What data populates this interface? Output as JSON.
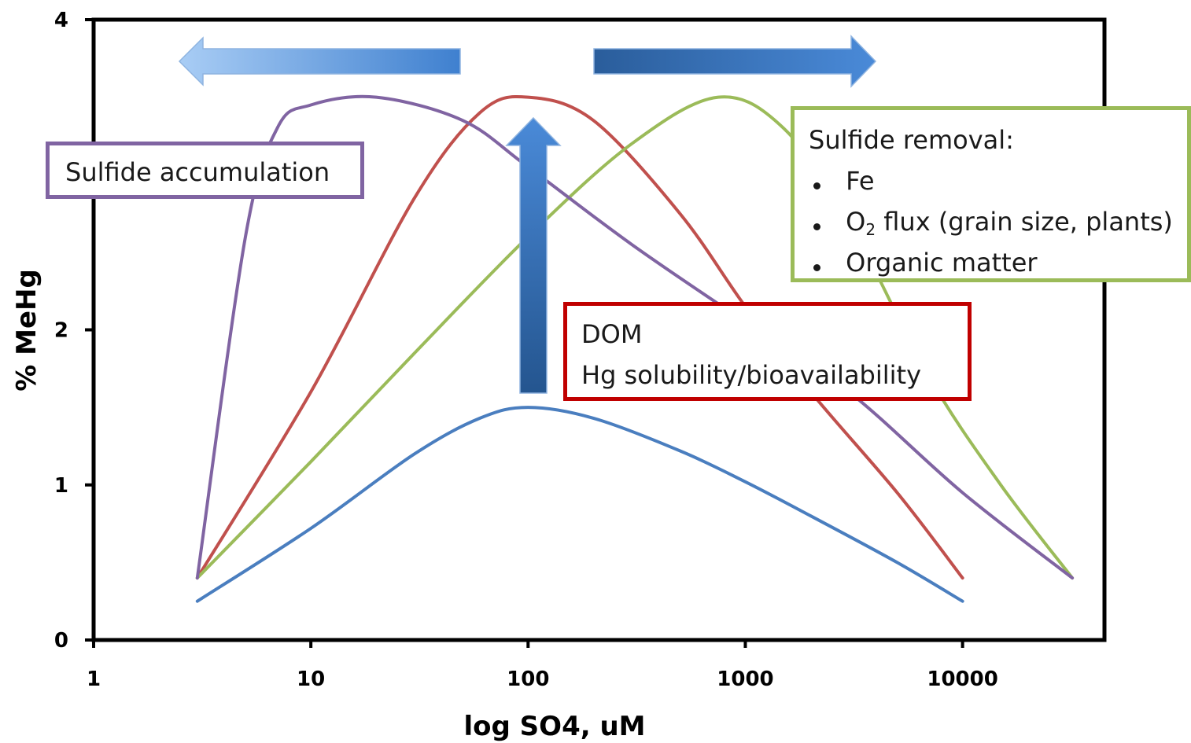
{
  "chart_data": {
    "type": "line",
    "xlabel": "log SO4, uM",
    "ylabel": "% MeHg",
    "x_scale": "log",
    "xlim": [
      1,
      45000
    ],
    "ylim": [
      0,
      4
    ],
    "x_ticks": [
      "1",
      "10",
      "100",
      "1000",
      "10000"
    ],
    "y_ticks": [
      "0",
      "1",
      "2",
      "4"
    ],
    "grid": false,
    "legend": "none",
    "series": [
      {
        "color": "#4a7ebf",
        "points": [
          [
            3,
            0.25
          ],
          [
            10,
            0.72
          ],
          [
            30,
            1.2
          ],
          [
            60,
            1.43
          ],
          [
            100,
            1.5
          ],
          [
            200,
            1.43
          ],
          [
            500,
            1.22
          ],
          [
            1000,
            1.02
          ],
          [
            2000,
            0.8
          ],
          [
            5000,
            0.5
          ],
          [
            10000,
            0.25
          ]
        ]
      },
      {
        "color": "#c0504d",
        "points": [
          [
            3,
            0.4
          ],
          [
            10,
            1.6
          ],
          [
            30,
            2.85
          ],
          [
            60,
            3.4
          ],
          [
            100,
            3.5
          ],
          [
            200,
            3.35
          ],
          [
            500,
            2.75
          ],
          [
            1000,
            2.15
          ],
          [
            2000,
            1.6
          ],
          [
            5000,
            0.95
          ],
          [
            10000,
            0.4
          ]
        ]
      },
      {
        "color": "#9bbb59",
        "points": [
          [
            3,
            0.4
          ],
          [
            10,
            1.15
          ],
          [
            30,
            1.85
          ],
          [
            100,
            2.6
          ],
          [
            300,
            3.2
          ],
          [
            750,
            3.5
          ],
          [
            1500,
            3.3
          ],
          [
            3000,
            2.7
          ],
          [
            7000,
            1.7
          ],
          [
            15000,
            1.0
          ],
          [
            32000,
            0.4
          ]
        ]
      },
      {
        "color": "#8064a2",
        "points": [
          [
            3,
            0.4
          ],
          [
            5,
            2.6
          ],
          [
            7,
            3.3
          ],
          [
            10,
            3.45
          ],
          [
            20,
            3.5
          ],
          [
            50,
            3.35
          ],
          [
            100,
            3.05
          ],
          [
            300,
            2.55
          ],
          [
            1000,
            2.05
          ],
          [
            3000,
            1.6
          ],
          [
            10000,
            0.95
          ],
          [
            32000,
            0.4
          ]
        ]
      }
    ],
    "arrows": [
      {
        "direction": "left",
        "color": "#6fa8e8"
      },
      {
        "direction": "right",
        "color": "#3a74c0"
      },
      {
        "direction": "up",
        "color": "#3a74c0"
      }
    ],
    "annotations": {
      "sulfide_accumulation": {
        "text": "Sulfide accumulation",
        "border_color": "#8064a2"
      },
      "dom": {
        "lines": [
          "DOM",
          "Hg solubility/bioavailability"
        ],
        "border_color": "#c00000"
      },
      "sulfide_removal": {
        "title": "Sulfide removal:",
        "items": [
          "Fe",
          "O",
          "2",
          " flux (grain size, plants)",
          "Organic matter"
        ],
        "border_color": "#9bbb59"
      }
    }
  }
}
